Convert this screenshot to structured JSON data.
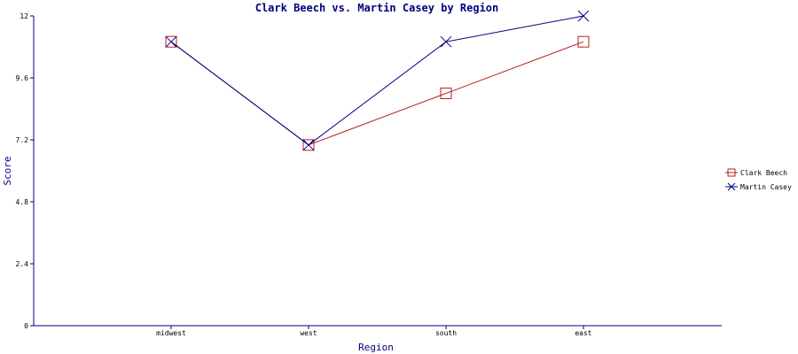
{
  "chart_data": {
    "type": "line",
    "title": "Clark Beech vs. Martin Casey by Region",
    "xlabel": "Region",
    "ylabel": "Score",
    "categories": [
      "midwest",
      "west",
      "south",
      "east"
    ],
    "ylim": [
      0,
      12
    ],
    "yticks": [
      "0",
      "2.4",
      "4.8",
      "7.2",
      "9.6",
      "12"
    ],
    "grid": false,
    "legend_position": "right",
    "series": [
      {
        "name": "Clark Beech",
        "color": "#b22222",
        "marker": "square",
        "values": [
          11,
          7,
          9,
          11
        ]
      },
      {
        "name": "Martin Casey",
        "color": "#000080",
        "marker": "x",
        "values": [
          11,
          7,
          11,
          12
        ]
      }
    ]
  }
}
